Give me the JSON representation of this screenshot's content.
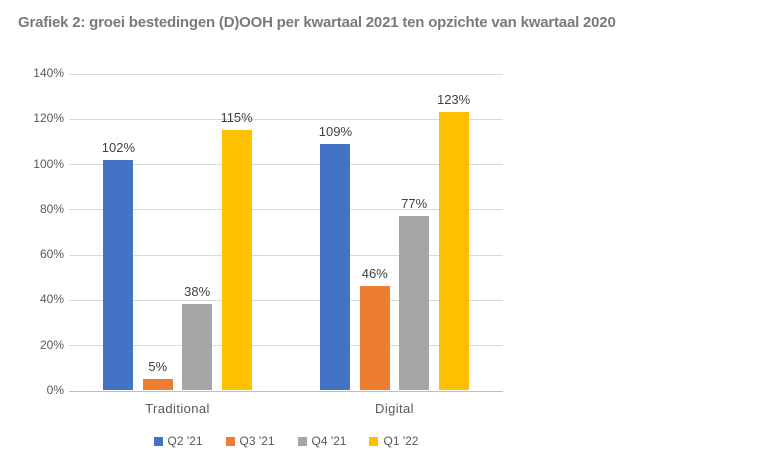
{
  "title": "Grafiek 2: groei bestedingen (D)OOH per kwartaal 2021 ten opzichte van kwartaal 2020",
  "chart_data": {
    "type": "bar",
    "title": "Grafiek 2: groei bestedingen (D)OOH per kwartaal 2021 ten opzichte van kwartaal 2020",
    "categories": [
      "Traditional",
      "Digital"
    ],
    "series": [
      {
        "name": "Q2 '21",
        "color": "#4472C4",
        "values": [
          102,
          109
        ]
      },
      {
        "name": "Q3 '21",
        "color": "#ED7D31",
        "values": [
          5,
          46
        ]
      },
      {
        "name": "Q4 '21",
        "color": "#A5A5A5",
        "values": [
          38,
          77
        ]
      },
      {
        "name": "Q1 '22",
        "color": "#FFC000",
        "values": [
          115,
          123
        ]
      }
    ],
    "data_labels": [
      "102%",
      "5%",
      "38%",
      "115%",
      "109%",
      "46%",
      "77%",
      "123%"
    ],
    "value_suffix": "%",
    "ylim": [
      0,
      140
    ],
    "ytick_step": 20,
    "ytick_labels": [
      "0%",
      "20%",
      "40%",
      "60%",
      "80%",
      "100%",
      "120%",
      "140%"
    ],
    "xlabel": "",
    "ylabel": "",
    "grid": true,
    "legend_position": "bottom",
    "legend": [
      "Q2 '21",
      "Q3 '21",
      "Q4 '21",
      "Q1 '22"
    ]
  },
  "colors": {
    "series_blue": "#4472C4",
    "series_orange": "#ED7D31",
    "series_gray": "#A5A5A5",
    "series_yellow": "#FFC000",
    "gridline": "#d9d9d9",
    "axis_line": "#bfbfbf",
    "axis_text": "#595959",
    "data_label_text": "#404040",
    "title_text": "#7a7a7a"
  }
}
